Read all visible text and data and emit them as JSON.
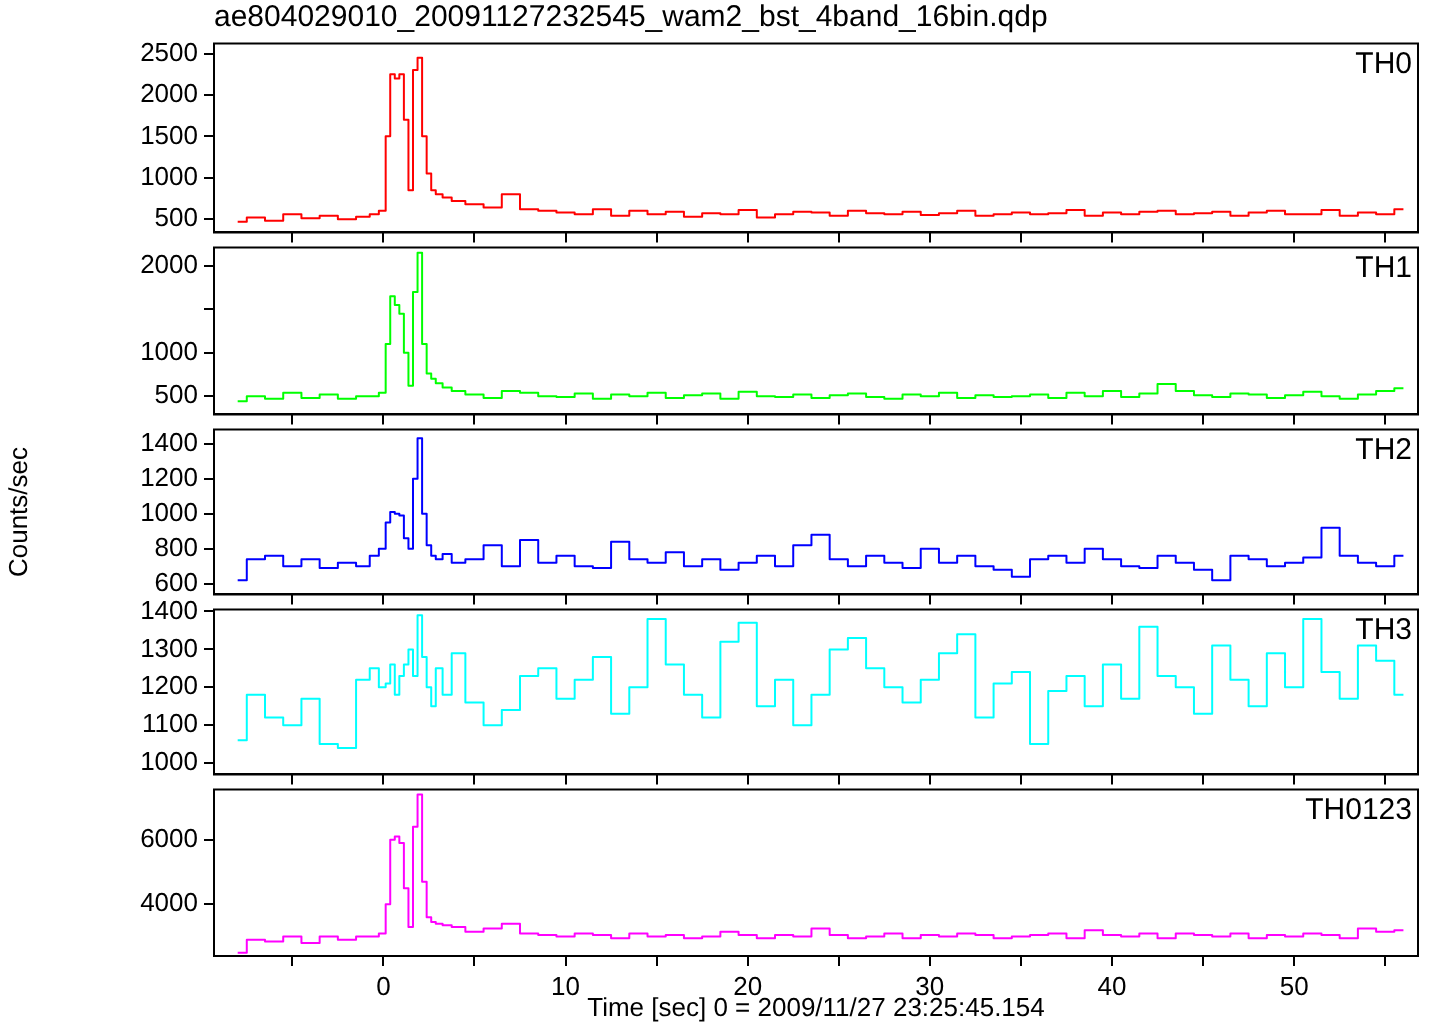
{
  "chart_data": [
    {
      "type": "step",
      "title": "ae804029010_20091127232545_wam2_bst_4band_16bin.qdp",
      "annotations": [
        "TH0"
      ],
      "tick_labels": "y",
      "x": [
        -8,
        -7,
        -6,
        -5,
        -4,
        -3,
        -2,
        -1,
        -0.5,
        0,
        0.25,
        0.5,
        0.75,
        1,
        1.25,
        1.5,
        1.75,
        2,
        2.25,
        2.5,
        2.75,
        3,
        3.5,
        4,
        5,
        6,
        7,
        8,
        9,
        10,
        11,
        12,
        13,
        14,
        15,
        16,
        17,
        18,
        19,
        20,
        21,
        22,
        23,
        24,
        25,
        26,
        27,
        28,
        29,
        30,
        31,
        32,
        33,
        34,
        35,
        36,
        37,
        38,
        39,
        40,
        41,
        42,
        43,
        44,
        45,
        46,
        47,
        48,
        49,
        50,
        51,
        52,
        53,
        54,
        55,
        56
      ],
      "series": [
        {
          "color": "#ff0000",
          "values": [
            470,
            520,
            480,
            560,
            510,
            540,
            500,
            530,
            560,
            600,
            1500,
            2250,
            2200,
            2250,
            1700,
            850,
            2300,
            2450,
            1500,
            1050,
            850,
            800,
            760,
            720,
            680,
            640,
            800,
            620,
            600,
            580,
            560,
            620,
            540,
            600,
            560,
            590,
            530,
            570,
            560,
            610,
            520,
            560,
            590,
            580,
            540,
            600,
            570,
            560,
            590,
            550,
            570,
            600,
            540,
            560,
            580,
            560,
            570,
            610,
            540,
            580,
            560,
            590,
            600,
            560,
            570,
            590,
            540,
            580,
            600,
            560,
            560,
            610,
            540,
            580,
            560,
            620
          ]
        }
      ],
      "xlim": [
        -9.3,
        56.8
      ],
      "xticks": [
        {
          "value": -5,
          "label": null
        },
        0,
        {
          "value": 5,
          "label": null
        },
        10,
        {
          "value": 15,
          "label": null
        },
        20,
        {
          "value": 25,
          "label": null
        },
        30,
        {
          "value": 35,
          "label": null
        },
        40,
        {
          "value": 45,
          "label": null
        },
        50,
        {
          "value": 55,
          "label": null
        }
      ],
      "ylim": [
        340,
        2620
      ],
      "yticks": [
        500,
        1000,
        1500,
        2000,
        2500
      ]
    },
    {
      "type": "step",
      "annotations": [
        "TH1"
      ],
      "tick_labels": "y",
      "x": [
        -8,
        -7,
        -6,
        -5,
        -4,
        -3,
        -2,
        -1,
        -0.5,
        0,
        0.25,
        0.5,
        0.75,
        1,
        1.25,
        1.5,
        1.75,
        2,
        2.25,
        2.5,
        2.75,
        3,
        3.5,
        4,
        5,
        6,
        7,
        8,
        9,
        10,
        11,
        12,
        13,
        14,
        15,
        16,
        17,
        18,
        19,
        20,
        21,
        22,
        23,
        24,
        25,
        26,
        27,
        28,
        29,
        30,
        31,
        32,
        33,
        34,
        35,
        36,
        37,
        38,
        39,
        40,
        41,
        42,
        43,
        44,
        45,
        46,
        47,
        48,
        49,
        50,
        51,
        52,
        53,
        54,
        55,
        56
      ],
      "series": [
        {
          "color": "#00ff00",
          "values": [
            440,
            500,
            470,
            540,
            480,
            520,
            470,
            500,
            500,
            540,
            1100,
            1650,
            1550,
            1450,
            1000,
            620,
            1700,
            2150,
            1100,
            760,
            700,
            650,
            600,
            560,
            520,
            480,
            560,
            540,
            500,
            490,
            530,
            470,
            520,
            500,
            540,
            480,
            510,
            530,
            470,
            550,
            500,
            490,
            520,
            480,
            510,
            530,
            490,
            470,
            520,
            500,
            540,
            480,
            510,
            490,
            500,
            520,
            480,
            540,
            500,
            560,
            490,
            530,
            640,
            560,
            510,
            490,
            530,
            520,
            480,
            510,
            550,
            500,
            470,
            520,
            560,
            590
          ]
        }
      ],
      "xlim": [
        -9.3,
        56.8
      ],
      "xticks": [
        {
          "value": -5,
          "label": null
        },
        0,
        {
          "value": 5,
          "label": null
        },
        10,
        {
          "value": 15,
          "label": null
        },
        20,
        {
          "value": 25,
          "label": null
        },
        30,
        {
          "value": 35,
          "label": null
        },
        40,
        {
          "value": 45,
          "label": null
        },
        50,
        {
          "value": 55,
          "label": null
        }
      ],
      "ylim": [
        290,
        2210
      ],
      "yticks": [
        500,
        1000,
        {
          "value": 1500,
          "label": null
        },
        2000
      ]
    },
    {
      "type": "step",
      "ylabel": "Counts/sec",
      "annotations": [
        "TH2"
      ],
      "tick_labels": "y",
      "x": [
        -8,
        -7,
        -6,
        -5,
        -4,
        -3,
        -2,
        -1,
        -0.5,
        0,
        0.25,
        0.5,
        0.75,
        1,
        1.25,
        1.5,
        1.75,
        2,
        2.25,
        2.5,
        2.75,
        3,
        3.5,
        4,
        5,
        6,
        7,
        8,
        9,
        10,
        11,
        12,
        13,
        14,
        15,
        16,
        17,
        18,
        19,
        20,
        21,
        22,
        23,
        24,
        25,
        26,
        27,
        28,
        29,
        30,
        31,
        32,
        33,
        34,
        35,
        36,
        37,
        38,
        39,
        40,
        41,
        42,
        43,
        44,
        45,
        46,
        47,
        48,
        49,
        50,
        51,
        52,
        53,
        54,
        55,
        56
      ],
      "series": [
        {
          "color": "#0000ff",
          "values": [
            620,
            740,
            760,
            700,
            740,
            690,
            720,
            700,
            760,
            800,
            950,
            1010,
            1000,
            990,
            860,
            800,
            1200,
            1430,
            1000,
            820,
            760,
            740,
            770,
            720,
            740,
            820,
            700,
            850,
            720,
            760,
            700,
            690,
            840,
            740,
            720,
            780,
            700,
            740,
            680,
            720,
            760,
            700,
            820,
            880,
            740,
            700,
            760,
            720,
            690,
            800,
            720,
            760,
            700,
            680,
            640,
            740,
            760,
            720,
            800,
            740,
            700,
            690,
            760,
            720,
            680,
            620,
            760,
            740,
            700,
            720,
            750,
            920,
            760,
            720,
            700,
            760
          ]
        }
      ],
      "xlim": [
        -9.3,
        56.8
      ],
      "xticks": [
        {
          "value": -5,
          "label": null
        },
        0,
        {
          "value": 5,
          "label": null
        },
        10,
        {
          "value": 15,
          "label": null
        },
        20,
        {
          "value": 25,
          "label": null
        },
        30,
        {
          "value": 35,
          "label": null
        },
        40,
        {
          "value": 45,
          "label": null
        },
        50,
        {
          "value": 55,
          "label": null
        }
      ],
      "ylim": [
        540,
        1480
      ],
      "yticks": [
        600,
        800,
        1000,
        1200,
        1400
      ]
    },
    {
      "type": "step",
      "annotations": [
        "TH3"
      ],
      "tick_labels": "y",
      "x": [
        -8,
        -7,
        -6,
        -5,
        -4,
        -3,
        -2,
        -1,
        -0.5,
        0,
        0.25,
        0.5,
        0.75,
        1,
        1.25,
        1.5,
        1.75,
        2,
        2.25,
        2.5,
        2.75,
        3,
        3.5,
        4,
        5,
        6,
        7,
        8,
        9,
        10,
        11,
        12,
        13,
        14,
        15,
        16,
        17,
        18,
        19,
        20,
        21,
        22,
        23,
        24,
        25,
        26,
        27,
        28,
        29,
        30,
        31,
        32,
        33,
        34,
        35,
        36,
        37,
        38,
        39,
        40,
        41,
        42,
        43,
        44,
        45,
        46,
        47,
        48,
        49,
        50,
        51,
        52,
        53,
        54,
        55,
        56
      ],
      "series": [
        {
          "color": "#00ffff",
          "values": [
            1060,
            1180,
            1120,
            1100,
            1170,
            1050,
            1040,
            1220,
            1250,
            1200,
            1210,
            1260,
            1180,
            1230,
            1260,
            1300,
            1230,
            1390,
            1280,
            1200,
            1150,
            1250,
            1180,
            1290,
            1160,
            1100,
            1140,
            1230,
            1250,
            1170,
            1220,
            1280,
            1130,
            1200,
            1380,
            1260,
            1180,
            1120,
            1320,
            1370,
            1150,
            1220,
            1100,
            1180,
            1300,
            1330,
            1250,
            1200,
            1160,
            1220,
            1290,
            1340,
            1120,
            1210,
            1240,
            1050,
            1190,
            1230,
            1150,
            1260,
            1170,
            1360,
            1230,
            1200,
            1130,
            1310,
            1220,
            1150,
            1290,
            1200,
            1380,
            1240,
            1170,
            1310,
            1270,
            1180
          ]
        }
      ],
      "xlim": [
        -9.3,
        56.8
      ],
      "xticks": [
        {
          "value": -5,
          "label": null
        },
        0,
        {
          "value": 5,
          "label": null
        },
        10,
        {
          "value": 15,
          "label": null
        },
        20,
        {
          "value": 25,
          "label": null
        },
        30,
        {
          "value": 35,
          "label": null
        },
        40,
        {
          "value": 45,
          "label": null
        },
        50,
        {
          "value": 55,
          "label": null
        }
      ],
      "ylim": [
        970,
        1405
      ],
      "yticks": [
        1000,
        1100,
        1200,
        1300,
        1400
      ]
    },
    {
      "type": "step",
      "xlabel": "Time [sec] 0 = 2009/11/27 23:25:45.154",
      "annotations": [
        "TH0123"
      ],
      "x": [
        -8,
        -7,
        -6,
        -5,
        -4,
        -3,
        -2,
        -1,
        -0.5,
        0,
        0.25,
        0.5,
        0.75,
        1,
        1.25,
        1.5,
        1.75,
        2,
        2.25,
        2.5,
        2.75,
        3,
        3.5,
        4,
        5,
        6,
        7,
        8,
        9,
        10,
        11,
        12,
        13,
        14,
        15,
        16,
        17,
        18,
        19,
        20,
        21,
        22,
        23,
        24,
        25,
        26,
        27,
        28,
        29,
        30,
        31,
        32,
        33,
        34,
        35,
        36,
        37,
        38,
        39,
        40,
        41,
        42,
        43,
        44,
        45,
        46,
        47,
        48,
        49,
        50,
        51,
        52,
        53,
        54,
        55,
        56
      ],
      "series": [
        {
          "color": "#ff00ff",
          "values": [
            2500,
            2900,
            2850,
            3000,
            2800,
            3000,
            2900,
            3000,
            3000,
            3100,
            4000,
            6000,
            6100,
            5900,
            4500,
            3300,
            6400,
            7400,
            4700,
            3600,
            3450,
            3400,
            3350,
            3300,
            3150,
            3250,
            3400,
            3100,
            3050,
            3000,
            3100,
            3050,
            2950,
            3100,
            3000,
            3050,
            2950,
            3000,
            3150,
            3050,
            2950,
            3050,
            3000,
            3250,
            3050,
            2950,
            3000,
            3100,
            2950,
            3050,
            3000,
            3100,
            3050,
            2950,
            3000,
            3050,
            3100,
            2950,
            3200,
            3050,
            3000,
            3100,
            2950,
            3100,
            3050,
            3000,
            3100,
            2950,
            3050,
            3000,
            3100,
            3050,
            2950,
            3250,
            3150,
            3200
          ]
        }
      ],
      "xlim": [
        -9.3,
        56.8
      ],
      "xticks": [
        {
          "value": -5,
          "label": null
        },
        0,
        {
          "value": 5,
          "label": null
        },
        10,
        {
          "value": 15,
          "label": null
        },
        20,
        {
          "value": 25,
          "label": null
        },
        30,
        {
          "value": 35,
          "label": null
        },
        40,
        {
          "value": 45,
          "label": null
        },
        50,
        {
          "value": 55,
          "label": null
        }
      ],
      "ylim": [
        2400,
        7550
      ],
      "yticks": [
        4000,
        6000
      ]
    }
  ]
}
